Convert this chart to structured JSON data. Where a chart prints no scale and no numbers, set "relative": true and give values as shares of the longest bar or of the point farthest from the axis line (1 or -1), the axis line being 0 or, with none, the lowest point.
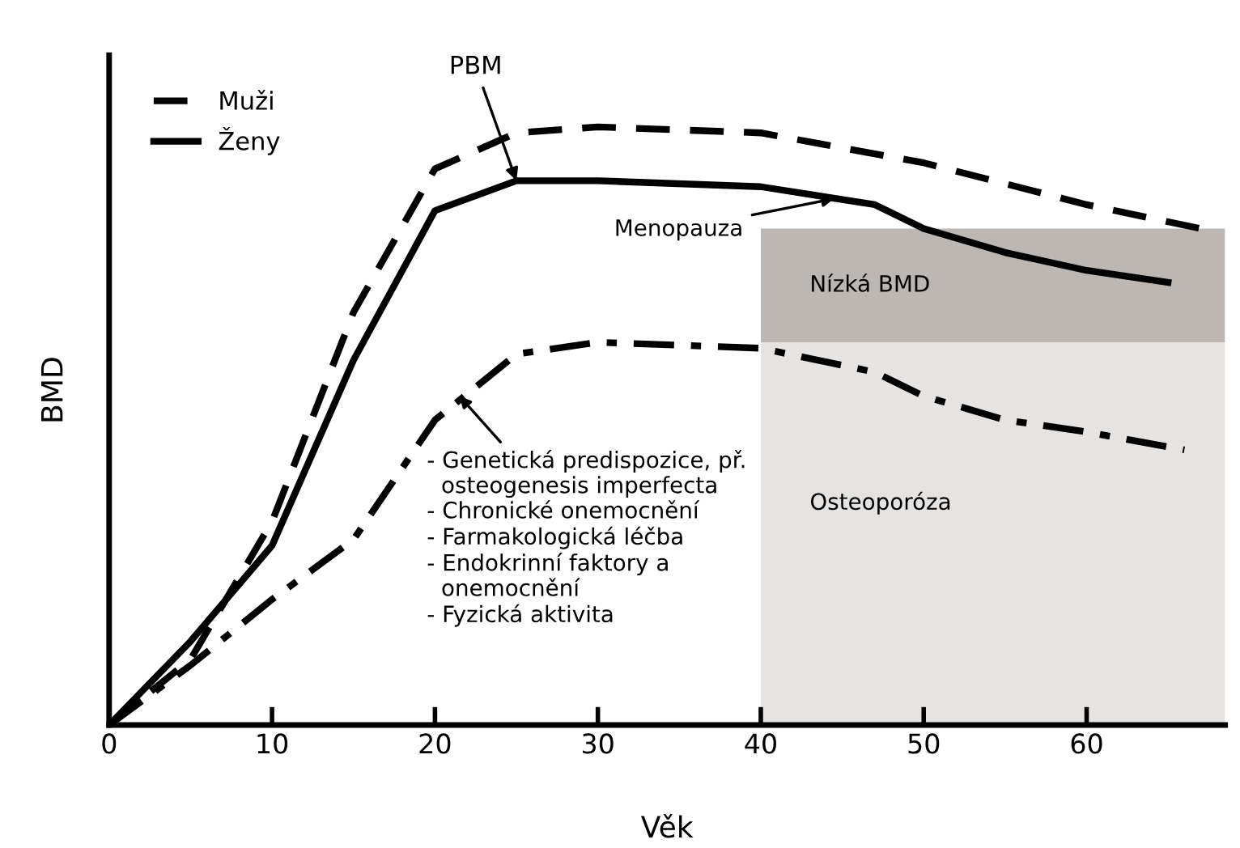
{
  "chart_data": {
    "type": "line",
    "relative": true,
    "xlabel": "Věk",
    "ylabel": "BMD",
    "xlim": [
      0,
      68.5
    ],
    "xticks": [
      0,
      10,
      20,
      30,
      40,
      50,
      60
    ],
    "grid": false,
    "legend": "top left",
    "marker": "none",
    "series": [
      {
        "name": "Muži",
        "color": "#000000",
        "line_style": "dashed",
        "x": [
          0,
          5,
          10,
          15,
          20,
          25,
          30,
          40,
          50,
          60,
          67
        ],
        "values": [
          0,
          0.11,
          0.34,
          0.69,
          0.93,
          0.99,
          1.0,
          0.99,
          0.94,
          0.87,
          0.83
        ]
      },
      {
        "name": "Ženy",
        "color": "#000000",
        "line_style": "solid",
        "x": [
          0,
          5,
          10,
          15,
          20,
          25,
          30,
          40,
          47,
          50,
          55,
          60,
          65
        ],
        "values": [
          0,
          0.14,
          0.3,
          0.61,
          0.86,
          0.91,
          0.91,
          0.9,
          0.87,
          0.83,
          0.79,
          0.76,
          0.74
        ]
      },
      {
        "color": "#000000",
        "line_style": "dashdot",
        "x": [
          0,
          5,
          10,
          15,
          20,
          25,
          30,
          40,
          47,
          50,
          55,
          60,
          66
        ],
        "values": [
          0,
          0.1,
          0.21,
          0.31,
          0.51,
          0.62,
          0.64,
          0.63,
          0.59,
          0.55,
          0.51,
          0.49,
          0.46
        ]
      }
    ],
    "bands": [
      {
        "axis": "x",
        "from": 40,
        "to": 68.5,
        "label": "Osteoporóza",
        "color": "#e6e4e2"
      },
      {
        "axis": "y",
        "from": 0.64,
        "to": 0.83,
        "label": "Nízká BMD",
        "color": "#bdb7b4"
      }
    ],
    "annotations": [
      {
        "text": "PBM",
        "x": 25,
        "y": 0.91
      },
      {
        "text": "Menopauza",
        "x": 44.5,
        "y": 0.88
      },
      {
        "text": "- Genetická predispozice, př.\n  osteogenesis imperfecta\n- Chronické onemocnění\n- Farmakologická léčba\n- Endokrinní faktory a\n  onemocnění\n- Fyzická aktivita",
        "x": 21.5,
        "y": 0.55
      }
    ]
  }
}
